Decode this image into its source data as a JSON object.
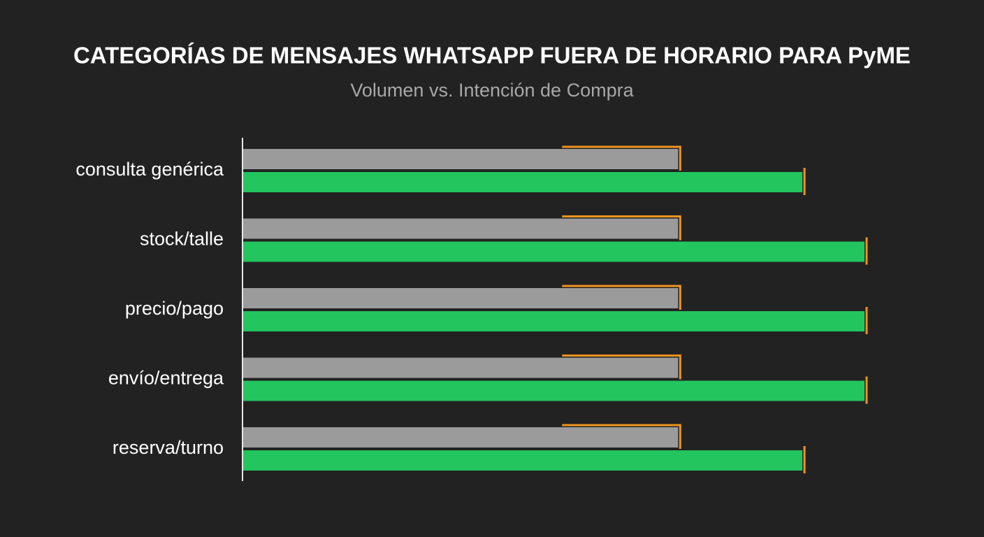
{
  "chart_data": {
    "type": "hbar",
    "title": "CATEGORÍAS DE MENSAJES WHATSAPP FUERA DE HORARIO PARA PyME",
    "subtitle": "Volumen vs. Intención de Compra",
    "categories": [
      "consulta genérica",
      "stock/talle",
      "precio/pago",
      "envío/entrega",
      "reserva/turno"
    ],
    "series": [
      {
        "color": "#9b9b9b",
        "values": [
          70,
          70,
          70,
          70,
          70
        ]
      },
      {
        "color": "#22c55e",
        "values": [
          90,
          100,
          100,
          100,
          90
        ]
      }
    ],
    "cap_color": "#f0941f",
    "xlim": [
      0,
      100
    ]
  }
}
